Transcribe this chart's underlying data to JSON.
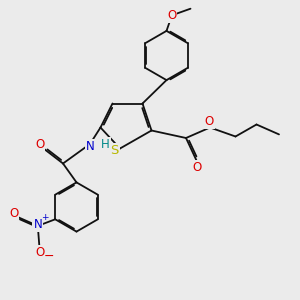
{
  "bg_color": "#ebebeb",
  "atom_colors": {
    "S": "#b8b800",
    "O": "#dd0000",
    "N": "#0000cc",
    "H": "#008888",
    "C": "#111111"
  },
  "bond_color": "#111111",
  "bond_lw": 1.3,
  "dbo": 0.055,
  "fs": 8.5,
  "fs_small": 7.0
}
